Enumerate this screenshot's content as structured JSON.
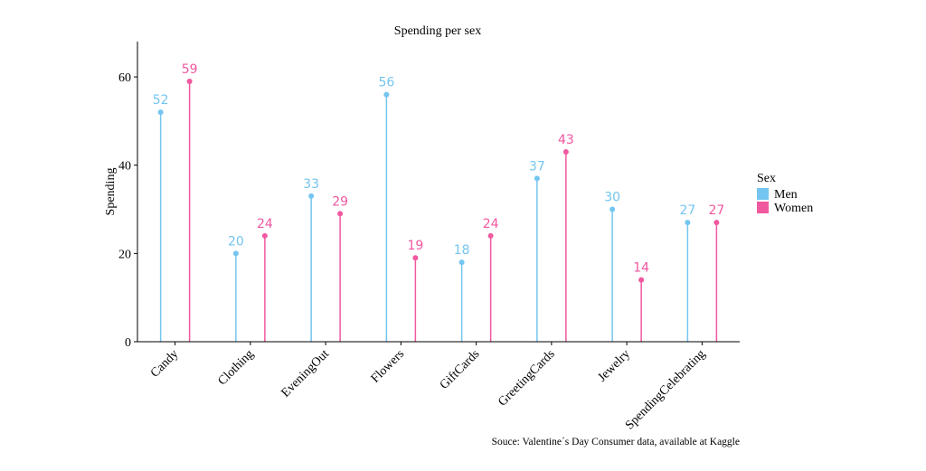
{
  "chart_data": {
    "type": "lollipop",
    "title": "Spending per sex",
    "xlabel": "",
    "ylabel": "Spending",
    "ylim": [
      0,
      68
    ],
    "yticks": [
      0,
      20,
      40,
      60
    ],
    "categories": [
      "Candy",
      "Clothing",
      "EveningOut",
      "Flowers",
      "GiftCards",
      "GreetingCards",
      "Jewelry",
      "SpendingCelebrating"
    ],
    "series": [
      {
        "name": "Men",
        "color": "#74c5ef",
        "values": [
          52,
          20,
          33,
          56,
          18,
          37,
          30,
          27
        ]
      },
      {
        "name": "Women",
        "color": "#f0589f",
        "values": [
          59,
          24,
          29,
          19,
          24,
          43,
          14,
          27
        ]
      }
    ],
    "legend": {
      "title": "Sex",
      "position": "right"
    },
    "caption": "Souce: Valentine´s Day Consumer data, available at Kaggle"
  }
}
